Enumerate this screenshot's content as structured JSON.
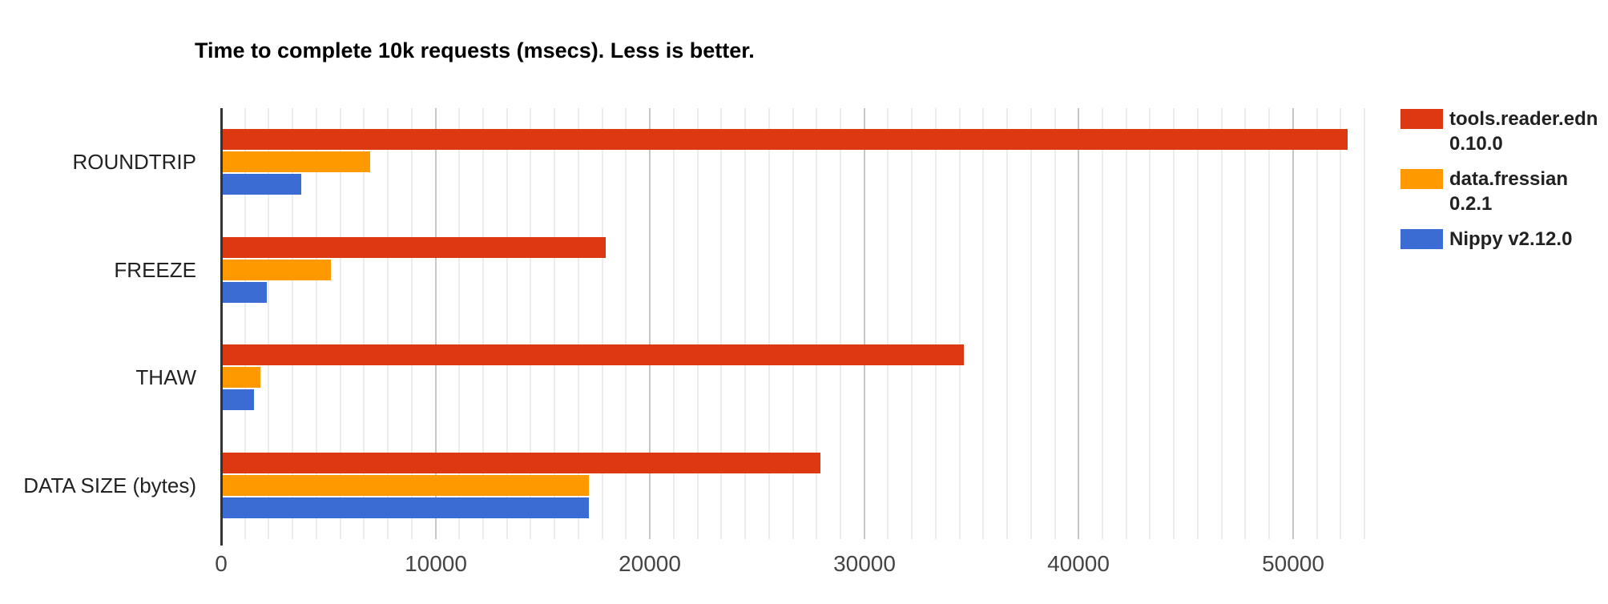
{
  "title": "Time to complete 10k requests (msecs). Less is better.",
  "chart_data": {
    "type": "bar",
    "orientation": "horizontal",
    "title": "Time to complete 10k requests (msecs). Less is better.",
    "categories": [
      "ROUNDTRIP",
      "FREEZE",
      "THAW",
      "DATA SIZE (bytes)"
    ],
    "series": [
      {
        "name": "tools.reader.edn 0.10.0",
        "color": "#DC3912",
        "values": [
          52500,
          17900,
          34600,
          27900
        ]
      },
      {
        "name": "data.fressian 0.2.1",
        "color": "#FF9900",
        "values": [
          6900,
          5100,
          1800,
          17100
        ]
      },
      {
        "name": "Nippy v2.12.0",
        "color": "#3B6CD4",
        "values": [
          3700,
          2100,
          1500,
          17100
        ]
      }
    ],
    "xlabel": "",
    "ylabel": "",
    "x_ticks": [
      0,
      10000,
      20000,
      30000,
      40000,
      50000
    ],
    "x_tick_labels": [
      "0",
      "10000",
      "20000",
      "30000",
      "40000",
      "50000"
    ],
    "x_max": 53333,
    "minor_gridlines_per_major": 9,
    "grid": true,
    "legend_position": "right",
    "colors": {
      "axis_line": "#333333",
      "major_gridline": "#c6c6c6",
      "minor_gridline": "#ececec",
      "title_text": "#000000",
      "category_text": "#222222",
      "tick_text": "#444444",
      "legend_text": "#212121",
      "background": "#ffffff"
    }
  }
}
